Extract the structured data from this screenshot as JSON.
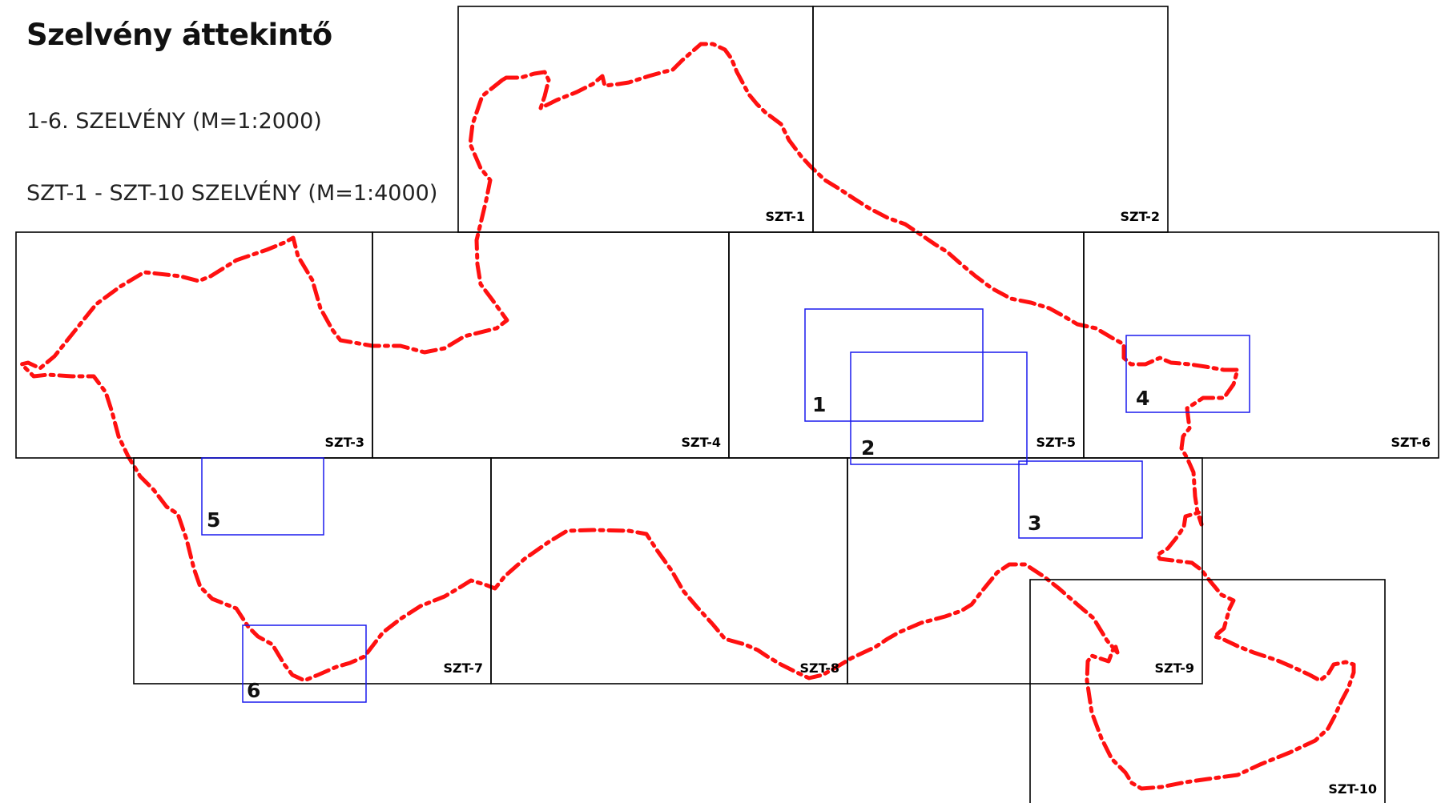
{
  "title": "Szelvény áttekintő",
  "legend": {
    "line1": "1-6. SZELVÉNY (M=1:2000)",
    "line2": "SZT-1 - SZT-10 SZELVÉNY (M=1:4000)"
  },
  "colors": {
    "sheet_grid": "#000000",
    "detail_frames": "#1a1aee",
    "boundary_line": "#ff1010"
  },
  "sheets_1_4000": [
    "SZT-1",
    "SZT-2",
    "SZT-3",
    "SZT-4",
    "SZT-5",
    "SZT-6",
    "SZT-7",
    "SZT-8",
    "SZT-9",
    "SZT-10"
  ],
  "sheets_1_2000": [
    "1",
    "2",
    "3",
    "4",
    "5",
    "6"
  ]
}
